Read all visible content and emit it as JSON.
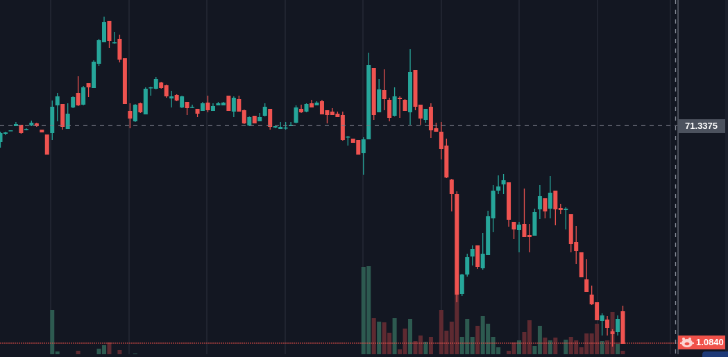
{
  "chart_data": {
    "type": "candlestick",
    "ylim": [
      68.04,
      73.15
    ],
    "grid": "vertical",
    "colors": {
      "up": "#26a69a",
      "down": "#ef5350",
      "up_volume": "#2d5a50",
      "down_volume": "#5e2a31",
      "background": "#131722",
      "grid": "#2a2e39"
    },
    "candles_ohlc": [
      [
        71.1,
        71.25,
        71.02,
        71.23
      ],
      [
        71.22,
        71.25,
        71.2,
        71.24
      ],
      [
        71.26,
        71.27,
        71.26,
        71.27
      ],
      [
        71.33,
        71.39,
        71.33,
        71.36
      ],
      [
        71.35,
        71.35,
        71.22,
        71.23
      ],
      [
        71.28,
        71.3,
        71.27,
        71.29
      ],
      [
        71.34,
        71.41,
        71.33,
        71.38
      ],
      [
        71.37,
        71.38,
        71.32,
        71.33
      ],
      [
        71.28,
        71.28,
        71.24,
        71.24
      ],
      [
        71.21,
        71.21,
        70.92,
        70.92
      ],
      [
        71.23,
        71.7,
        71.13,
        71.61
      ],
      [
        71.63,
        71.81,
        71.4,
        71.76
      ],
      [
        71.65,
        71.65,
        71.28,
        71.32
      ],
      [
        71.29,
        71.66,
        71.29,
        71.51
      ],
      [
        71.6,
        71.76,
        71.59,
        71.75
      ],
      [
        71.81,
        72.05,
        71.62,
        71.63
      ],
      [
        71.64,
        71.91,
        71.63,
        71.89
      ],
      [
        71.95,
        71.95,
        71.75,
        71.89
      ],
      [
        71.88,
        72.28,
        71.88,
        72.26
      ],
      [
        72.23,
        72.59,
        72.2,
        72.57
      ],
      [
        72.54,
        72.91,
        72.54,
        72.83
      ],
      [
        72.85,
        72.85,
        72.46,
        72.56
      ],
      [
        72.53,
        72.69,
        72.52,
        72.54
      ],
      [
        72.59,
        72.65,
        72.25,
        72.29
      ],
      [
        72.31,
        72.31,
        71.65,
        71.65
      ],
      [
        71.55,
        71.66,
        71.3,
        71.44
      ],
      [
        71.4,
        71.65,
        71.39,
        71.64
      ],
      [
        71.66,
        71.67,
        71.52,
        71.53
      ],
      [
        71.5,
        71.89,
        71.5,
        71.87
      ],
      [
        71.88,
        71.9,
        71.77,
        71.89
      ],
      [
        71.87,
        72.04,
        71.86,
        72.01
      ],
      [
        71.96,
        71.97,
        71.87,
        71.88
      ],
      [
        71.92,
        71.93,
        71.74,
        71.76
      ],
      [
        71.73,
        71.84,
        71.6,
        71.76
      ],
      [
        71.78,
        71.79,
        71.69,
        71.7
      ],
      [
        71.6,
        71.77,
        71.59,
        71.76
      ],
      [
        71.68,
        71.68,
        71.49,
        71.59
      ],
      [
        71.6,
        71.64,
        71.59,
        71.61
      ],
      [
        71.58,
        71.58,
        71.46,
        71.51
      ],
      [
        71.55,
        71.68,
        71.55,
        71.66
      ],
      [
        71.67,
        71.77,
        71.53,
        71.56
      ],
      [
        71.55,
        71.66,
        71.55,
        71.62
      ],
      [
        71.63,
        71.68,
        71.63,
        71.66
      ],
      [
        71.63,
        71.68,
        71.63,
        71.67
      ],
      [
        71.77,
        71.77,
        71.55,
        71.55
      ],
      [
        71.54,
        71.76,
        71.46,
        71.74
      ],
      [
        71.72,
        71.77,
        71.54,
        71.54
      ],
      [
        71.56,
        71.57,
        71.36,
        71.37
      ],
      [
        71.34,
        71.47,
        71.33,
        71.46
      ],
      [
        71.48,
        71.48,
        71.37,
        71.37
      ],
      [
        71.4,
        71.52,
        71.4,
        71.46
      ],
      [
        71.48,
        71.66,
        71.47,
        71.61
      ],
      [
        71.58,
        71.58,
        71.28,
        71.32
      ],
      [
        71.31,
        71.33,
        71.3,
        71.33
      ],
      [
        71.29,
        71.39,
        71.29,
        71.32
      ],
      [
        71.3,
        71.39,
        71.28,
        71.31
      ],
      [
        71.33,
        71.39,
        71.33,
        71.35
      ],
      [
        71.38,
        71.63,
        71.37,
        71.6
      ],
      [
        71.58,
        71.64,
        71.52,
        71.53
      ],
      [
        71.54,
        71.66,
        71.53,
        71.65
      ],
      [
        71.66,
        71.71,
        71.6,
        71.6
      ],
      [
        71.63,
        71.69,
        71.63,
        71.67
      ],
      [
        71.69,
        71.71,
        71.5,
        71.5
      ],
      [
        71.56,
        71.56,
        71.37,
        71.49
      ],
      [
        71.54,
        71.59,
        71.49,
        71.49
      ],
      [
        71.51,
        71.54,
        71.46,
        71.46
      ],
      [
        71.49,
        71.54,
        71.12,
        71.13
      ],
      [
        71.17,
        71.19,
        71.05,
        71.18
      ],
      [
        71.15,
        71.15,
        71.09,
        71.09
      ],
      [
        71.13,
        71.13,
        70.92,
        70.92
      ],
      [
        70.94,
        71.17,
        70.63,
        71.14
      ],
      [
        71.14,
        72.39,
        71.14,
        72.21
      ],
      [
        72.17,
        72.17,
        71.42,
        71.49
      ],
      [
        71.53,
        72.01,
        71.53,
        71.86
      ],
      [
        71.85,
        72.15,
        71.56,
        71.72
      ],
      [
        71.71,
        71.74,
        71.4,
        71.45
      ],
      [
        71.48,
        71.89,
        71.47,
        71.76
      ],
      [
        71.74,
        71.76,
        71.45,
        71.72
      ],
      [
        71.71,
        71.72,
        71.55,
        71.55
      ],
      [
        71.53,
        72.44,
        71.35,
        72.11
      ],
      [
        72.14,
        72.14,
        71.56,
        71.61
      ],
      [
        71.64,
        71.64,
        71.35,
        71.44
      ],
      [
        71.42,
        71.58,
        71.38,
        71.58
      ],
      [
        71.61,
        71.66,
        71.16,
        71.27
      ],
      [
        71.3,
        71.38,
        71.25,
        71.25
      ],
      [
        71.25,
        71.39,
        70.85,
        71.0
      ],
      [
        71.05,
        71.15,
        70.58,
        70.59
      ],
      [
        70.56,
        70.57,
        70.1,
        70.35
      ],
      [
        70.35,
        70.39,
        68.79,
        68.9
      ],
      [
        68.91,
        69.2,
        68.88,
        69.19
      ],
      [
        69.19,
        69.49,
        69.16,
        69.44
      ],
      [
        69.45,
        69.61,
        69.32,
        69.56
      ],
      [
        69.61,
        69.61,
        69.27,
        69.3
      ],
      [
        69.28,
        69.79,
        69.26,
        69.49
      ],
      [
        69.47,
        70.11,
        69.47,
        70.03
      ],
      [
        70.0,
        70.48,
        69.8,
        70.4
      ],
      [
        70.4,
        70.62,
        70.35,
        70.46
      ],
      [
        70.49,
        70.64,
        70.35,
        70.55
      ],
      [
        70.52,
        70.52,
        69.88,
        69.98
      ],
      [
        69.95,
        69.95,
        69.7,
        69.84
      ],
      [
        69.83,
        69.95,
        69.51,
        69.91
      ],
      [
        69.92,
        70.43,
        69.73,
        69.73
      ],
      [
        69.76,
        69.92,
        69.51,
        69.73
      ],
      [
        69.75,
        70.14,
        69.75,
        70.09
      ],
      [
        70.13,
        70.48,
        69.99,
        70.32
      ],
      [
        70.29,
        70.29,
        70.0,
        70.1
      ],
      [
        70.14,
        70.61,
        70.0,
        70.37
      ],
      [
        70.4,
        70.4,
        69.9,
        70.13
      ],
      [
        70.15,
        70.21,
        70.06,
        70.12
      ],
      [
        70.12,
        70.16,
        69.84,
        70.14
      ],
      [
        70.06,
        70.06,
        69.51,
        69.63
      ],
      [
        69.66,
        69.89,
        69.34,
        69.53
      ],
      [
        69.51,
        69.51,
        69.15,
        69.15
      ],
      [
        69.12,
        69.41,
        68.94,
        68.94
      ],
      [
        68.9,
        69.03,
        68.75,
        68.76
      ],
      [
        68.79,
        68.79,
        68.53,
        68.53
      ],
      [
        68.52,
        68.63,
        68.31,
        68.6
      ],
      [
        68.54,
        68.59,
        68.31,
        68.42
      ],
      [
        68.37,
        68.4,
        68.15,
        68.33
      ],
      [
        68.36,
        68.6,
        68.31,
        68.55
      ],
      [
        68.66,
        68.74,
        68.19,
        68.19
      ]
    ],
    "volume": [
      0,
      0,
      0,
      0,
      0,
      0,
      0,
      0,
      0,
      0,
      73,
      13,
      0,
      0,
      0,
      14,
      0,
      0,
      0,
      17,
      22,
      26,
      0,
      15,
      0,
      0,
      10,
      0,
      0,
      0,
      0,
      0,
      0,
      0,
      0,
      0,
      0,
      0,
      0,
      0,
      0,
      0,
      0,
      0,
      0,
      0,
      0,
      0,
      0,
      0,
      0,
      0,
      0,
      0,
      0,
      0,
      0,
      0,
      0,
      0,
      0,
      0,
      0,
      0,
      0,
      0,
      0,
      0,
      0,
      0,
      135,
      136,
      61,
      56,
      55,
      40,
      61,
      16,
      46,
      60,
      28,
      36,
      27,
      34,
      0,
      73,
      43,
      56,
      95,
      34,
      60,
      34,
      50,
      64,
      53,
      34,
      19,
      0,
      14,
      26,
      29,
      41,
      58,
      21,
      50,
      33,
      29,
      33,
      0,
      30,
      34,
      29,
      19,
      39,
      39,
      53,
      28,
      29,
      70,
      24,
      14
    ],
    "crosshair_price": "71.3375",
    "crosshair_price_value": 71.3375,
    "last_value_label": "1.0840",
    "last_label_icon": "pig-icon",
    "last_label_color": "#f0524a"
  }
}
